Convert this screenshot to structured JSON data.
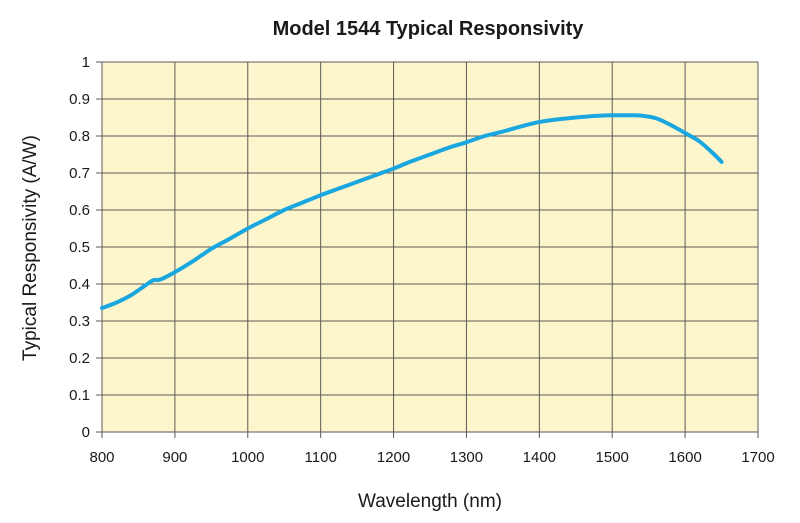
{
  "chart_data": {
    "type": "line",
    "title": "Model 1544 Typical Responsivity",
    "xlabel": "Wavelength (nm)",
    "ylabel": "Typical Responsivity (A/W)",
    "xlim": [
      800,
      1700
    ],
    "ylim": [
      0,
      1
    ],
    "x_ticks": [
      800,
      900,
      1000,
      1100,
      1200,
      1300,
      1400,
      1500,
      1600,
      1700
    ],
    "y_ticks": [
      0,
      0.1,
      0.2,
      0.3,
      0.4,
      0.5,
      0.6,
      0.7,
      0.8,
      0.9,
      1
    ],
    "y_tick_labels": [
      "0",
      "0.1",
      "0.2",
      "0.3",
      "0.4",
      "0.5",
      "0.6",
      "0.7",
      "0.8",
      "0.9",
      "1"
    ],
    "grid": true,
    "colors": {
      "plot_background": "#fdf6cc",
      "grid": "#5a5a5a",
      "line": "#1aa7e0"
    },
    "series": [
      {
        "x": [
          800,
          820,
          840,
          855,
          870,
          880,
          900,
          925,
          950,
          975,
          1000,
          1025,
          1050,
          1075,
          1100,
          1125,
          1150,
          1175,
          1200,
          1225,
          1250,
          1275,
          1300,
          1325,
          1350,
          1375,
          1400,
          1425,
          1450,
          1475,
          1500,
          1525,
          1540,
          1560,
          1580,
          1600,
          1620,
          1640,
          1650
        ],
        "y": [
          0.335,
          0.35,
          0.37,
          0.39,
          0.41,
          0.412,
          0.432,
          0.462,
          0.495,
          0.522,
          0.55,
          0.575,
          0.6,
          0.62,
          0.64,
          0.658,
          0.676,
          0.694,
          0.712,
          0.732,
          0.75,
          0.768,
          0.783,
          0.8,
          0.812,
          0.826,
          0.838,
          0.845,
          0.85,
          0.854,
          0.856,
          0.856,
          0.855,
          0.848,
          0.83,
          0.808,
          0.785,
          0.75,
          0.73
        ]
      }
    ]
  }
}
